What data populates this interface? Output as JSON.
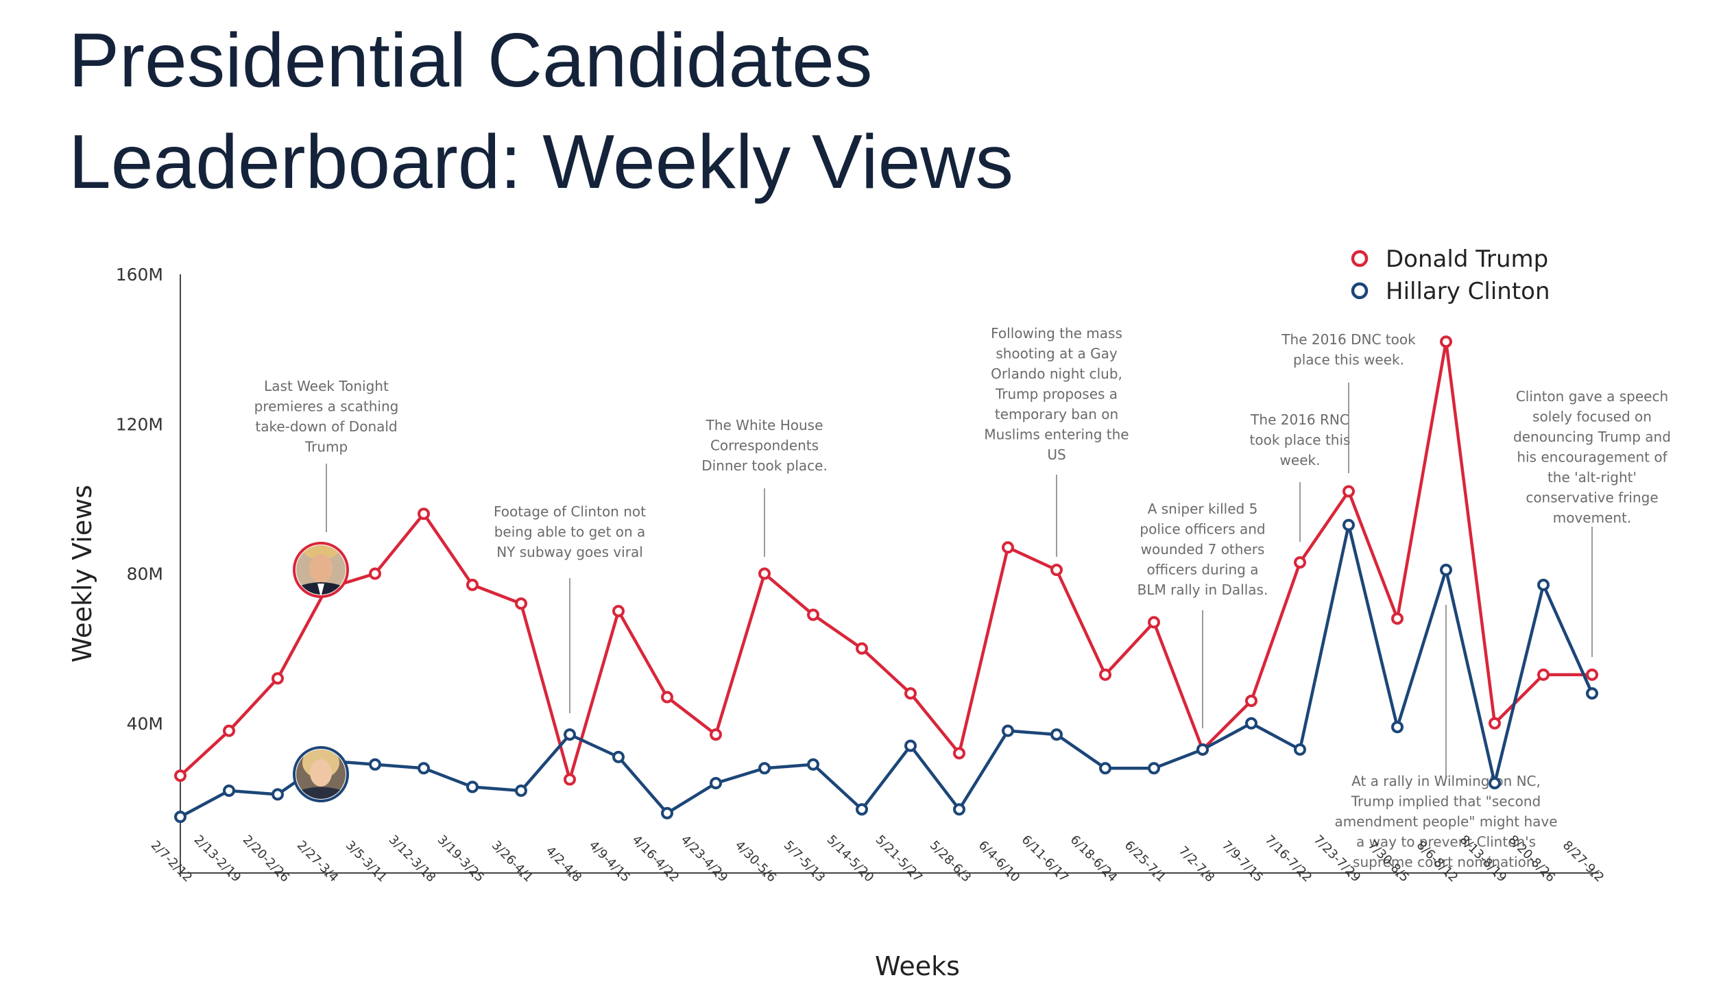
{
  "title_lines": [
    "Presidential Candidates",
    "Leaderboard: Weekly Views"
  ],
  "chart_data": {
    "type": "line",
    "title": "Presidential Candidates Leaderboard: Weekly Views",
    "xlabel": "Weeks",
    "ylabel": "Weekly Views",
    "ylim": [
      0,
      160
    ],
    "yunit": "M",
    "yticks": [
      "40M",
      "80M",
      "120M",
      "160M"
    ],
    "ytick_values": [
      40,
      80,
      120,
      160
    ],
    "grid": false,
    "legend_position": "top-right",
    "categories": [
      "2/7-2/12",
      "2/13-2/19",
      "2/20-2/26",
      "2/27-3/4",
      "3/5-3/11",
      "3/12-3/18",
      "3/19-3/25",
      "3/26-4/1",
      "4/2-4/8",
      "4/9-4/15",
      "4/16-4/22",
      "4/23-4/29",
      "4/30-5/6",
      "5/7-5/13",
      "5/14-5/20",
      "5/21-5/27",
      "5/28-6/3",
      "6/4-6/10",
      "6/11-6/17",
      "6/18-6/24",
      "6/25-7/1",
      "7/2-7/8",
      "7/9-7/15",
      "7/16-7/22",
      "7/23-7/29",
      "7/30-8/5",
      "8/6-8/12",
      "8/13-8/19",
      "8/20-8/26",
      "8/27-9/2"
    ],
    "series": [
      {
        "name": "Donald Trump",
        "color": "#d9263a",
        "values": [
          26,
          38,
          52,
          76,
          80,
          96,
          77,
          72,
          25,
          70,
          47,
          37,
          80,
          69,
          60,
          48,
          32,
          87,
          81,
          53,
          67,
          33,
          46,
          83,
          102,
          68,
          142,
          40,
          53,
          53
        ]
      },
      {
        "name": "Hillary Clinton",
        "color": "#1c4678",
        "values": [
          15,
          22,
          21,
          30,
          29,
          28,
          23,
          22,
          37,
          31,
          16,
          24,
          28,
          29,
          17,
          34,
          17,
          38,
          37,
          28,
          28,
          33,
          40,
          33,
          93,
          39,
          81,
          24,
          77,
          48
        ]
      }
    ],
    "annotations": [
      {
        "index": 3,
        "lines": [
          "Last Week Tonight",
          "premieres a scathing",
          "take-down of Donald",
          "Trump"
        ]
      },
      {
        "index": 8,
        "lines": [
          "Footage of Clinton not",
          "being able to get on a",
          "NY subway goes viral"
        ]
      },
      {
        "index": 12,
        "lines": [
          "The White House",
          "Correspondents",
          "Dinner took place."
        ]
      },
      {
        "index": 18,
        "lines": [
          "Following the mass",
          "shooting at a Gay",
          "Orlando night club,",
          "Trump proposes a",
          "temporary ban on",
          "Muslims entering the",
          "US"
        ]
      },
      {
        "index": 21,
        "lines": [
          "A sniper killed 5",
          "police officers and",
          "wounded 7 others",
          "officers during a",
          "BLM rally in Dallas."
        ]
      },
      {
        "index": 23,
        "lines": [
          "The 2016 RNC",
          "took place this",
          "week."
        ]
      },
      {
        "index": 24,
        "lines": [
          "The 2016 DNC took",
          "place this week."
        ]
      },
      {
        "index": 26,
        "lines": [
          "At a rally in Wilmington NC,",
          "Trump implied that \"second",
          "amendment people\" might have",
          "a way to prevent Clinton's",
          "supreme court nomination."
        ]
      },
      {
        "index": 29,
        "lines": [
          "Clinton gave a speech",
          "solely focused on",
          "denouncing Trump and",
          "his encouragement of",
          "the 'alt-right'",
          "conservative fringe",
          "movement."
        ]
      }
    ]
  }
}
